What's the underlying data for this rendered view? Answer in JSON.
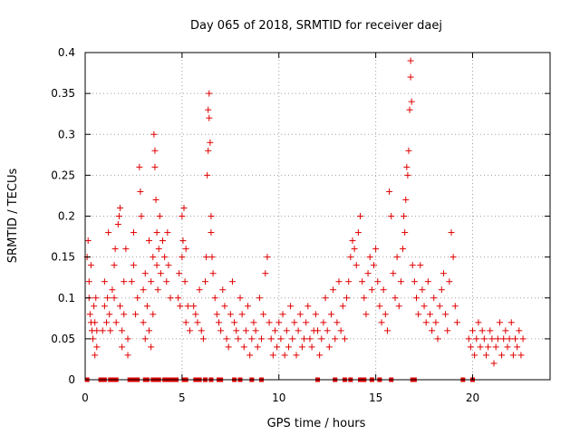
{
  "chart_data": {
    "type": "scatter",
    "title": "Day 065 of 2018, SRMTID for receiver daej",
    "xlabel": "GPS time / hours",
    "ylabel": "SRMTID / TECUs",
    "xlim": [
      0,
      24
    ],
    "ylim": [
      0,
      0.4
    ],
    "x_ticks": [
      0,
      5,
      10,
      15,
      20
    ],
    "y_ticks": [
      0,
      0.05,
      0.1,
      0.15,
      0.2,
      0.25,
      0.3,
      0.35,
      0.4
    ],
    "x_tick_labels": [
      "0",
      "5",
      "10",
      "15",
      "20"
    ],
    "y_tick_labels": [
      "0",
      "0.05",
      "0.1",
      "0.15",
      "0.2",
      "0.25",
      "0.3",
      "0.35",
      "0.4"
    ],
    "grid": true,
    "marker": "+",
    "color": "#e00000",
    "series": [
      {
        "name": "SRMTID",
        "points": [
          [
            0.1,
            0.15
          ],
          [
            0.15,
            0.17
          ],
          [
            0.2,
            0.12
          ],
          [
            0.2,
            0.1
          ],
          [
            0.25,
            0.08
          ],
          [
            0.3,
            0.07
          ],
          [
            0.3,
            0.14
          ],
          [
            0.35,
            0.06
          ],
          [
            0.4,
            0.05
          ],
          [
            0.45,
            0.09
          ],
          [
            0.5,
            0.03
          ],
          [
            0.5,
            0.07
          ],
          [
            0.55,
            0.1
          ],
          [
            0.6,
            0.06
          ],
          [
            0.6,
            0.04
          ],
          [
            0.9,
            0.06
          ],
          [
            1.0,
            0.12
          ],
          [
            1.0,
            0.09
          ],
          [
            1.1,
            0.07
          ],
          [
            1.15,
            0.1
          ],
          [
            1.2,
            0.18
          ],
          [
            1.25,
            0.08
          ],
          [
            1.3,
            0.06
          ],
          [
            1.4,
            0.11
          ],
          [
            1.5,
            0.14
          ],
          [
            1.5,
            0.1
          ],
          [
            1.55,
            0.16
          ],
          [
            1.6,
            0.07
          ],
          [
            1.7,
            0.19
          ],
          [
            1.75,
            0.2
          ],
          [
            1.8,
            0.21
          ],
          [
            1.8,
            0.09
          ],
          [
            1.9,
            0.06
          ],
          [
            1.9,
            0.04
          ],
          [
            2.0,
            0.08
          ],
          [
            2.0,
            0.12
          ],
          [
            2.1,
            0.16
          ],
          [
            2.2,
            0.05
          ],
          [
            2.2,
            0.03
          ],
          [
            2.4,
            0.12
          ],
          [
            2.5,
            0.14
          ],
          [
            2.5,
            0.18
          ],
          [
            2.6,
            0.08
          ],
          [
            2.7,
            0.1
          ],
          [
            2.8,
            0.26
          ],
          [
            2.85,
            0.23
          ],
          [
            2.9,
            0.2
          ],
          [
            3.0,
            0.11
          ],
          [
            3.0,
            0.07
          ],
          [
            3.1,
            0.13
          ],
          [
            3.1,
            0.05
          ],
          [
            3.2,
            0.09
          ],
          [
            3.3,
            0.17
          ],
          [
            3.3,
            0.06
          ],
          [
            3.4,
            0.12
          ],
          [
            3.4,
            0.04
          ],
          [
            3.5,
            0.15
          ],
          [
            3.5,
            0.08
          ],
          [
            3.55,
            0.3
          ],
          [
            3.6,
            0.26
          ],
          [
            3.6,
            0.28
          ],
          [
            3.65,
            0.22
          ],
          [
            3.7,
            0.18
          ],
          [
            3.7,
            0.14
          ],
          [
            3.75,
            0.11
          ],
          [
            3.8,
            0.16
          ],
          [
            3.85,
            0.2
          ],
          [
            3.9,
            0.13
          ],
          [
            4.0,
            0.17
          ],
          [
            4.1,
            0.15
          ],
          [
            4.2,
            0.12
          ],
          [
            4.25,
            0.18
          ],
          [
            4.3,
            0.14
          ],
          [
            4.4,
            0.1
          ],
          [
            4.8,
            0.1
          ],
          [
            4.85,
            0.13
          ],
          [
            4.9,
            0.09
          ],
          [
            5.0,
            0.15
          ],
          [
            5.0,
            0.2
          ],
          [
            5.05,
            0.17
          ],
          [
            5.1,
            0.21
          ],
          [
            5.15,
            0.12
          ],
          [
            5.2,
            0.07
          ],
          [
            5.2,
            0.16
          ],
          [
            5.3,
            0.09
          ],
          [
            5.4,
            0.06
          ],
          [
            5.6,
            0.09
          ],
          [
            5.7,
            0.08
          ],
          [
            5.8,
            0.07
          ],
          [
            5.9,
            0.11
          ],
          [
            6.0,
            0.06
          ],
          [
            6.1,
            0.05
          ],
          [
            6.2,
            0.12
          ],
          [
            6.25,
            0.15
          ],
          [
            6.3,
            0.25
          ],
          [
            6.35,
            0.28
          ],
          [
            6.35,
            0.33
          ],
          [
            6.4,
            0.35
          ],
          [
            6.4,
            0.32
          ],
          [
            6.45,
            0.29
          ],
          [
            6.5,
            0.2
          ],
          [
            6.5,
            0.18
          ],
          [
            6.55,
            0.15
          ],
          [
            6.6,
            0.13
          ],
          [
            6.7,
            0.1
          ],
          [
            6.8,
            0.08
          ],
          [
            6.9,
            0.07
          ],
          [
            7.0,
            0.06
          ],
          [
            7.1,
            0.11
          ],
          [
            7.2,
            0.09
          ],
          [
            7.3,
            0.05
          ],
          [
            7.4,
            0.04
          ],
          [
            7.5,
            0.08
          ],
          [
            7.6,
            0.12
          ],
          [
            7.7,
            0.07
          ],
          [
            7.8,
            0.06
          ],
          [
            7.9,
            0.05
          ],
          [
            8.0,
            0.1
          ],
          [
            8.1,
            0.08
          ],
          [
            8.2,
            0.04
          ],
          [
            8.3,
            0.06
          ],
          [
            8.4,
            0.09
          ],
          [
            8.5,
            0.03
          ],
          [
            8.6,
            0.05
          ],
          [
            8.7,
            0.07
          ],
          [
            8.8,
            0.06
          ],
          [
            8.9,
            0.04
          ],
          [
            9.0,
            0.1
          ],
          [
            9.1,
            0.05
          ],
          [
            9.2,
            0.08
          ],
          [
            9.3,
            0.13
          ],
          [
            9.4,
            0.15
          ],
          [
            9.5,
            0.07
          ],
          [
            9.6,
            0.05
          ],
          [
            9.7,
            0.03
          ],
          [
            9.8,
            0.06
          ],
          [
            9.9,
            0.04
          ],
          [
            10.0,
            0.07
          ],
          [
            10.1,
            0.05
          ],
          [
            10.2,
            0.08
          ],
          [
            10.3,
            0.03
          ],
          [
            10.4,
            0.06
          ],
          [
            10.5,
            0.04
          ],
          [
            10.6,
            0.09
          ],
          [
            10.7,
            0.05
          ],
          [
            10.8,
            0.07
          ],
          [
            10.9,
            0.03
          ],
          [
            11.0,
            0.06
          ],
          [
            11.1,
            0.08
          ],
          [
            11.2,
            0.04
          ],
          [
            11.3,
            0.05
          ],
          [
            11.4,
            0.07
          ],
          [
            11.5,
            0.09
          ],
          [
            11.6,
            0.05
          ],
          [
            11.7,
            0.04
          ],
          [
            11.8,
            0.06
          ],
          [
            11.9,
            0.08
          ],
          [
            12.0,
            0.06
          ],
          [
            12.1,
            0.03
          ],
          [
            12.2,
            0.05
          ],
          [
            12.3,
            0.07
          ],
          [
            12.4,
            0.1
          ],
          [
            12.5,
            0.06
          ],
          [
            12.6,
            0.04
          ],
          [
            12.7,
            0.08
          ],
          [
            12.8,
            0.11
          ],
          [
            12.9,
            0.05
          ],
          [
            13.0,
            0.07
          ],
          [
            13.1,
            0.12
          ],
          [
            13.2,
            0.06
          ],
          [
            13.3,
            0.09
          ],
          [
            13.4,
            0.05
          ],
          [
            13.5,
            0.1
          ],
          [
            13.6,
            0.12
          ],
          [
            13.7,
            0.15
          ],
          [
            13.8,
            0.17
          ],
          [
            13.9,
            0.16
          ],
          [
            14.0,
            0.14
          ],
          [
            14.1,
            0.18
          ],
          [
            14.2,
            0.2
          ],
          [
            14.3,
            0.12
          ],
          [
            14.4,
            0.1
          ],
          [
            14.5,
            0.08
          ],
          [
            14.6,
            0.13
          ],
          [
            14.7,
            0.15
          ],
          [
            14.8,
            0.11
          ],
          [
            14.9,
            0.14
          ],
          [
            15.0,
            0.16
          ],
          [
            15.1,
            0.12
          ],
          [
            15.2,
            0.09
          ],
          [
            15.3,
            0.07
          ],
          [
            15.4,
            0.11
          ],
          [
            15.5,
            0.08
          ],
          [
            15.6,
            0.06
          ],
          [
            15.7,
            0.23
          ],
          [
            15.8,
            0.2
          ],
          [
            15.9,
            0.13
          ],
          [
            16.0,
            0.1
          ],
          [
            16.1,
            0.15
          ],
          [
            16.2,
            0.09
          ],
          [
            16.3,
            0.12
          ],
          [
            16.4,
            0.16
          ],
          [
            16.45,
            0.2
          ],
          [
            16.5,
            0.18
          ],
          [
            16.55,
            0.22
          ],
          [
            16.6,
            0.26
          ],
          [
            16.65,
            0.25
          ],
          [
            16.7,
            0.28
          ],
          [
            16.75,
            0.33
          ],
          [
            16.8,
            0.37
          ],
          [
            16.8,
            0.39
          ],
          [
            16.85,
            0.34
          ],
          [
            16.9,
            0.14
          ],
          [
            17.0,
            0.12
          ],
          [
            17.1,
            0.1
          ],
          [
            17.2,
            0.08
          ],
          [
            17.3,
            0.14
          ],
          [
            17.4,
            0.11
          ],
          [
            17.5,
            0.09
          ],
          [
            17.6,
            0.07
          ],
          [
            17.7,
            0.12
          ],
          [
            17.8,
            0.08
          ],
          [
            17.9,
            0.06
          ],
          [
            18.0,
            0.1
          ],
          [
            18.1,
            0.07
          ],
          [
            18.2,
            0.05
          ],
          [
            18.3,
            0.09
          ],
          [
            18.4,
            0.11
          ],
          [
            18.5,
            0.13
          ],
          [
            18.6,
            0.08
          ],
          [
            18.7,
            0.06
          ],
          [
            18.8,
            0.12
          ],
          [
            18.9,
            0.18
          ],
          [
            19.0,
            0.15
          ],
          [
            19.1,
            0.09
          ],
          [
            19.2,
            0.07
          ],
          [
            19.8,
            0.05
          ],
          [
            19.9,
            0.04
          ],
          [
            20.0,
            0.06
          ],
          [
            20.1,
            0.03
          ],
          [
            20.2,
            0.05
          ],
          [
            20.3,
            0.07
          ],
          [
            20.4,
            0.04
          ],
          [
            20.5,
            0.06
          ],
          [
            20.6,
            0.05
          ],
          [
            20.7,
            0.03
          ],
          [
            20.8,
            0.04
          ],
          [
            20.9,
            0.06
          ],
          [
            21.0,
            0.05
          ],
          [
            21.1,
            0.02
          ],
          [
            21.2,
            0.04
          ],
          [
            21.3,
            0.05
          ],
          [
            21.4,
            0.07
          ],
          [
            21.5,
            0.03
          ],
          [
            21.6,
            0.05
          ],
          [
            21.7,
            0.06
          ],
          [
            21.8,
            0.04
          ],
          [
            21.9,
            0.05
          ],
          [
            22.0,
            0.07
          ],
          [
            22.1,
            0.03
          ],
          [
            22.2,
            0.05
          ],
          [
            22.3,
            0.04
          ],
          [
            22.4,
            0.06
          ],
          [
            22.5,
            0.03
          ],
          [
            22.6,
            0.05
          ]
        ]
      }
    ],
    "zero_markers": [
      0.1,
      0.8,
      0.9,
      1.0,
      1.3,
      1.5,
      1.6,
      2.3,
      2.4,
      2.6,
      2.7,
      3.1,
      3.2,
      3.5,
      3.6,
      3.8,
      4.1,
      4.2,
      4.4,
      4.5,
      4.6,
      4.7,
      5.1,
      5.2,
      5.7,
      5.9,
      6.2,
      6.5,
      6.9,
      7.0,
      7.7,
      8.0,
      8.6,
      9.1,
      12.0,
      12.9,
      13.4,
      13.7,
      14.2,
      14.4,
      14.8,
      15.2,
      15.8,
      16.9,
      17.0,
      19.5,
      20.0
    ]
  }
}
